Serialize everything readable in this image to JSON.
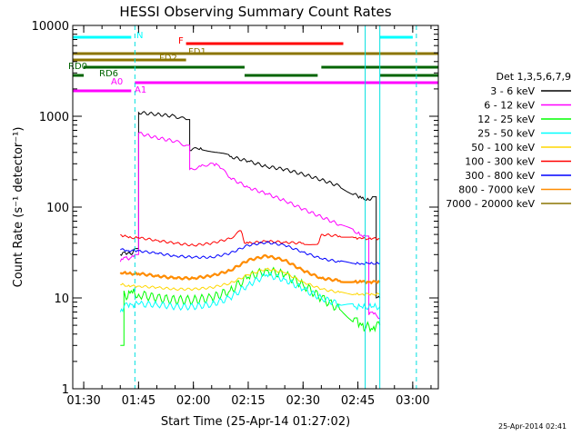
{
  "chart_data": {
    "type": "line",
    "title": "HESSI Observing Summary Count Rates",
    "xlabel": "Start Time (25-Apr-14 01:27:02)",
    "ylabel": "Count Rate (s⁻¹ detector⁻¹)",
    "y_scale": "log",
    "ylim": [
      1,
      10000
    ],
    "xlim": [
      "01:27",
      "03:07"
    ],
    "x_ticks": [
      "01:30",
      "01:45",
      "02:00",
      "02:15",
      "02:30",
      "02:45",
      "03:00"
    ],
    "y_ticks": [
      "1",
      "10",
      "100",
      "1000",
      "10000"
    ],
    "legend_title": "Det 1,3,5,6,7,9",
    "legend_position": "right",
    "series": [
      {
        "name": "3 - 6 keV",
        "color": "#000000",
        "x": [
          "01:40",
          "01:41",
          "01:42",
          "01:43",
          "01:44",
          "01:45",
          "01:50",
          "01:55",
          "01:58",
          "01:59",
          "02:02",
          "02:06",
          "02:10",
          "02:15",
          "02:20",
          "02:25",
          "02:30",
          "02:35",
          "02:40",
          "02:44",
          "02:46",
          "02:47",
          "02:48",
          "02:49",
          "02:50",
          "02:51"
        ],
        "y": [
          30,
          32,
          31,
          30,
          35,
          1100,
          1050,
          1000,
          920,
          420,
          450,
          400,
          360,
          320,
          280,
          260,
          230,
          200,
          170,
          140,
          125,
          120,
          120,
          130,
          10,
          10
        ]
      },
      {
        "name": "6 - 12 keV",
        "color": "#ff00ff",
        "x": [
          "01:40",
          "01:41",
          "01:42",
          "01:43",
          "01:44",
          "01:45",
          "01:50",
          "01:55",
          "01:58",
          "01:59",
          "02:02",
          "02:05",
          "02:07",
          "02:10",
          "02:15",
          "02:20",
          "02:25",
          "02:30",
          "02:35",
          "02:40",
          "02:44",
          "02:46",
          "02:47",
          "02:48",
          "02:49",
          "02:50",
          "02:51"
        ],
        "y": [
          25,
          28,
          27,
          28,
          30,
          650,
          580,
          530,
          480,
          260,
          280,
          305,
          285,
          210,
          165,
          140,
          118,
          95,
          78,
          64,
          54,
          49,
          48,
          6.5,
          7,
          6.5,
          6
        ]
      },
      {
        "name": "12 - 25 keV",
        "color": "#00ff00",
        "x": [
          "01:40",
          "01:41",
          "01:42",
          "01:43",
          "01:44",
          "01:45",
          "01:50",
          "01:55",
          "02:00",
          "02:05",
          "02:10",
          "02:15",
          "02:20",
          "02:25",
          "02:30",
          "02:35",
          "02:40",
          "02:44",
          "02:46",
          "02:47",
          "02:48",
          "02:49",
          "02:50",
          "02:51"
        ],
        "y": [
          3,
          12,
          10,
          12,
          11,
          11,
          10,
          9.5,
          9.5,
          10,
          12,
          17,
          20,
          18,
          14,
          10,
          7.5,
          6,
          5,
          4.5,
          5,
          4.5,
          5,
          5
        ]
      },
      {
        "name": "25 - 50 keV",
        "color": "#00ffff",
        "x": [
          "01:40",
          "01:41",
          "01:42",
          "01:43",
          "01:44",
          "01:45",
          "01:50",
          "01:55",
          "02:00",
          "02:05",
          "02:10",
          "02:15",
          "02:20",
          "02:25",
          "02:30",
          "02:35",
          "02:40",
          "02:44",
          "02:46",
          "02:47",
          "02:48",
          "02:49",
          "02:50",
          "02:51"
        ],
        "y": [
          7,
          8,
          8.5,
          8.5,
          8.5,
          8.5,
          8.5,
          8,
          8,
          8.5,
          10,
          14,
          18,
          16,
          12.5,
          10,
          8.5,
          8,
          8,
          8,
          8,
          8,
          8,
          8
        ]
      },
      {
        "name": "50 - 100 keV",
        "color": "#ffd700",
        "x": [
          "01:40",
          "01:41",
          "01:42",
          "01:43",
          "01:44",
          "01:45",
          "01:50",
          "01:55",
          "02:00",
          "02:05",
          "02:10",
          "02:15",
          "02:20",
          "02:25",
          "02:30",
          "02:35",
          "02:40",
          "02:44",
          "02:46",
          "02:47",
          "02:48",
          "02:49",
          "02:50",
          "02:51"
        ],
        "y": [
          14,
          14,
          13.5,
          13.5,
          13.5,
          13.5,
          13,
          12.5,
          12.5,
          13,
          14.5,
          18,
          21,
          19,
          15,
          12.5,
          11.5,
          11,
          11,
          11,
          11,
          11,
          11,
          11
        ]
      },
      {
        "name": "100 - 300 keV",
        "color": "#ff0000",
        "x": [
          "01:40",
          "01:41",
          "01:42",
          "01:43",
          "01:44",
          "01:45",
          "01:50",
          "01:55",
          "02:00",
          "02:05",
          "02:10",
          "02:13",
          "02:14",
          "02:15",
          "02:20",
          "02:25",
          "02:30",
          "02:34",
          "02:35",
          "02:40",
          "02:44",
          "02:46",
          "02:47",
          "02:48",
          "02:49",
          "02:50",
          "02:51"
        ],
        "y": [
          50,
          48,
          47,
          46,
          46,
          46,
          43,
          40,
          38,
          40,
          45,
          55,
          40,
          40,
          42,
          41,
          40,
          39,
          50,
          48,
          46,
          45,
          45,
          45,
          45,
          45,
          45
        ]
      },
      {
        "name": "300 - 800 keV",
        "color": "#0000ff",
        "x": [
          "01:40",
          "01:41",
          "01:42",
          "01:43",
          "01:44",
          "01:45",
          "01:50",
          "01:55",
          "02:00",
          "02:05",
          "02:10",
          "02:15",
          "02:20",
          "02:25",
          "02:30",
          "02:35",
          "02:40",
          "02:44",
          "02:46",
          "02:47",
          "02:48",
          "02:49",
          "02:50",
          "02:51"
        ],
        "y": [
          34,
          34,
          33,
          33,
          33,
          33,
          31,
          29,
          28,
          28,
          31,
          38,
          41,
          38,
          32,
          27,
          25,
          24,
          24,
          24,
          24,
          24,
          24,
          24
        ]
      },
      {
        "name": "800 - 7000 keV",
        "color": "#ff8c00",
        "x": [
          "01:40",
          "01:41",
          "01:42",
          "01:43",
          "01:44",
          "01:45",
          "01:50",
          "01:55",
          "02:00",
          "02:05",
          "02:10",
          "02:15",
          "02:20",
          "02:25",
          "02:30",
          "02:35",
          "02:40",
          "02:44",
          "02:46",
          "02:47",
          "02:48",
          "02:49",
          "02:50",
          "02:51"
        ],
        "y": [
          19,
          19,
          18.5,
          18.5,
          18.5,
          18.5,
          17.5,
          16.5,
          16.5,
          17.5,
          20,
          26,
          29,
          26,
          20,
          16.5,
          15.5,
          15,
          15,
          15,
          15,
          15,
          15,
          15
        ]
      },
      {
        "name": "7000 - 20000 keV",
        "color": "#8b7500",
        "x": [],
        "y": []
      }
    ],
    "observing_flags": [
      {
        "label": "N",
        "color": "#00ffff",
        "segments": [
          [
            "01:27",
            "01:43"
          ],
          [
            "02:51",
            "03:00"
          ]
        ]
      },
      {
        "label": "F",
        "color": "#ff0000",
        "segments": [
          [
            "01:58",
            "02:41"
          ]
        ]
      },
      {
        "label": "FD1",
        "color": "#8b7500",
        "segments": [
          [
            "01:27",
            "03:07"
          ]
        ]
      },
      {
        "label": "FD2",
        "color": "#8b7500",
        "segments": [
          [
            "01:27",
            "01:58"
          ]
        ]
      },
      {
        "label": "RD0",
        "color": "#006400",
        "segments": [
          [
            "01:30",
            "02:14"
          ],
          [
            "02:35",
            "03:07"
          ]
        ]
      },
      {
        "label": "RD6",
        "color": "#006400",
        "segments": [
          [
            "01:27",
            "01:30"
          ],
          [
            "02:14",
            "02:34"
          ],
          [
            "02:51",
            "03:07"
          ]
        ]
      },
      {
        "label": "A0",
        "color": "#ff00ff",
        "segments": [
          [
            "01:44",
            "03:07"
          ]
        ]
      },
      {
        "label": "A1",
        "color": "#ff00ff",
        "segments": [
          [
            "01:27",
            "01:43"
          ]
        ]
      }
    ],
    "vertical_markers": [
      {
        "time": "01:27",
        "style": "solid"
      },
      {
        "time": "01:44",
        "style": "dashed"
      },
      {
        "time": "02:47",
        "style": "solid"
      },
      {
        "time": "02:51",
        "style": "solid"
      },
      {
        "time": "03:01",
        "style": "dashed"
      }
    ]
  },
  "footer": {
    "timestamp": "25-Apr-2014 02:41"
  }
}
